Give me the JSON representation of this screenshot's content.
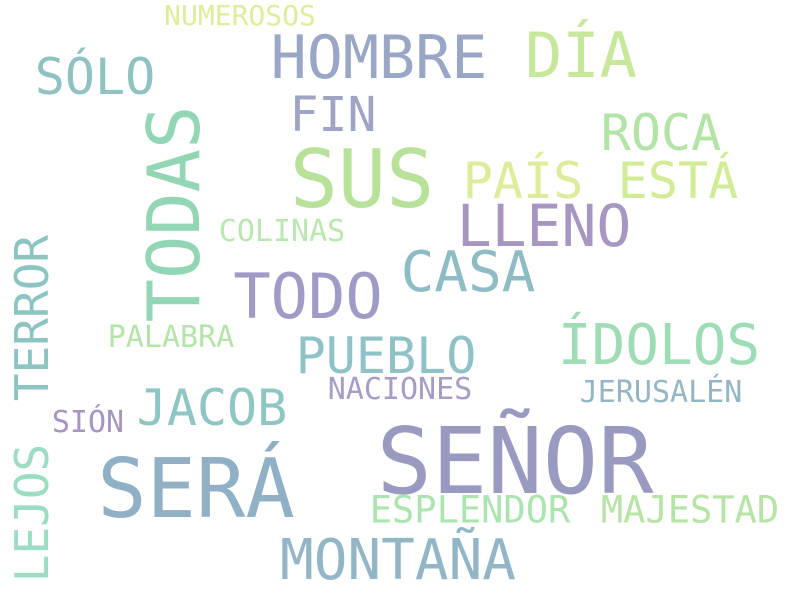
{
  "words": {
    "senor": {
      "text": "SEÑOR",
      "color": "#9a9ac0"
    },
    "sus": {
      "text": "SUS",
      "color": "#b8e29a"
    },
    "sera": {
      "text": "SERÁ",
      "color": "#90b0c6"
    },
    "todas": {
      "text": "TODAS",
      "color": "#93d6b6"
    },
    "hombre": {
      "text": "HOMBRE",
      "color": "#9aa6c6"
    },
    "dia": {
      "text": "DÍA",
      "color": "#c7e89a"
    },
    "todo": {
      "text": "TODO",
      "color": "#9e9cc6"
    },
    "lleno": {
      "text": "LLENO",
      "color": "#a796c2"
    },
    "casa": {
      "text": "CASA",
      "color": "#8ebcc4"
    },
    "montana": {
      "text": "MONTAÑA",
      "color": "#93b6c6"
    },
    "idolos": {
      "text": "ÍDOLOS",
      "color": "#9edcb6"
    },
    "lejos": {
      "text": "LEJOS",
      "color": "#9cdcc2"
    },
    "terror": {
      "text": "TERROR",
      "color": "#8cc4c2"
    },
    "pais": {
      "text": "PAÍS",
      "color": "#dcec98"
    },
    "esta": {
      "text": "ESTÁ",
      "color": "#d2ec96"
    },
    "solo": {
      "text": "SÓLO",
      "color": "#90c2c2"
    },
    "roca": {
      "text": "ROCA",
      "color": "#b2e4a6"
    },
    "pueblo": {
      "text": "PUEBLO",
      "color": "#8ec2c6"
    },
    "jacob": {
      "text": "JACOB",
      "color": "#8ec6c4"
    },
    "fin": {
      "text": "FIN",
      "color": "#9fa4c4"
    },
    "esplendor": {
      "text": "ESPLENDOR",
      "color": "#ace4b0"
    },
    "majestad": {
      "text": "MAJESTAD",
      "color": "#b6e4a4"
    },
    "colinas": {
      "text": "COLINAS",
      "color": "#bae6b0"
    },
    "palabra": {
      "text": "PALABRA",
      "color": "#b4e4a8"
    },
    "naciones": {
      "text": "NACIONES",
      "color": "#a89cc6"
    },
    "jerusalen": {
      "text": "JERUSALÉN",
      "color": "#94b6c4"
    },
    "sion": {
      "text": "SIÓN",
      "color": "#a694c2"
    },
    "numerosos": {
      "text": "NUMEROSOS",
      "color": "#dcee9a"
    }
  }
}
